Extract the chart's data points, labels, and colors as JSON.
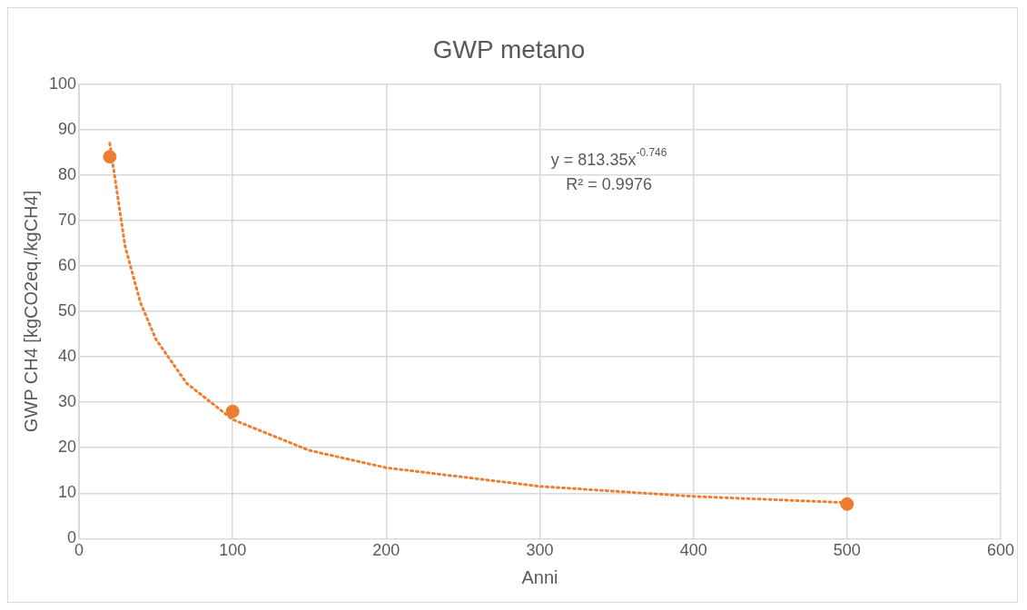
{
  "chart_data": {
    "type": "scatter",
    "title": "GWP metano",
    "xlabel": "Anni",
    "ylabel": "GWP CH4 [kgCO2eq./kgCH4]",
    "xlim": [
      0,
      600
    ],
    "xticks": [
      0,
      100,
      200,
      300,
      400,
      500,
      600
    ],
    "ylim": [
      0,
      100
    ],
    "yticks": [
      0,
      10,
      20,
      30,
      40,
      50,
      60,
      70,
      80,
      90,
      100
    ],
    "grid": true,
    "legend": false,
    "series": [
      {
        "type": "scatter",
        "color": "#ed7d31",
        "marker": "circle",
        "x": [
          20,
          100,
          500
        ],
        "values": [
          84,
          28,
          7.6
        ]
      },
      {
        "type": "line",
        "color": "#ed7d31",
        "marker": "none",
        "line_style": "dotted",
        "x": [
          20,
          30,
          40,
          50,
          70,
          100,
          150,
          200,
          300,
          400,
          500
        ],
        "values": [
          87.0,
          64.3,
          51.9,
          43.9,
          34.2,
          26.2,
          19.4,
          15.6,
          11.5,
          9.3,
          7.9
        ]
      }
    ],
    "annotations": [
      "y = 813.35x$^{-0.746}$",
      "R² = 0.9976"
    ]
  }
}
